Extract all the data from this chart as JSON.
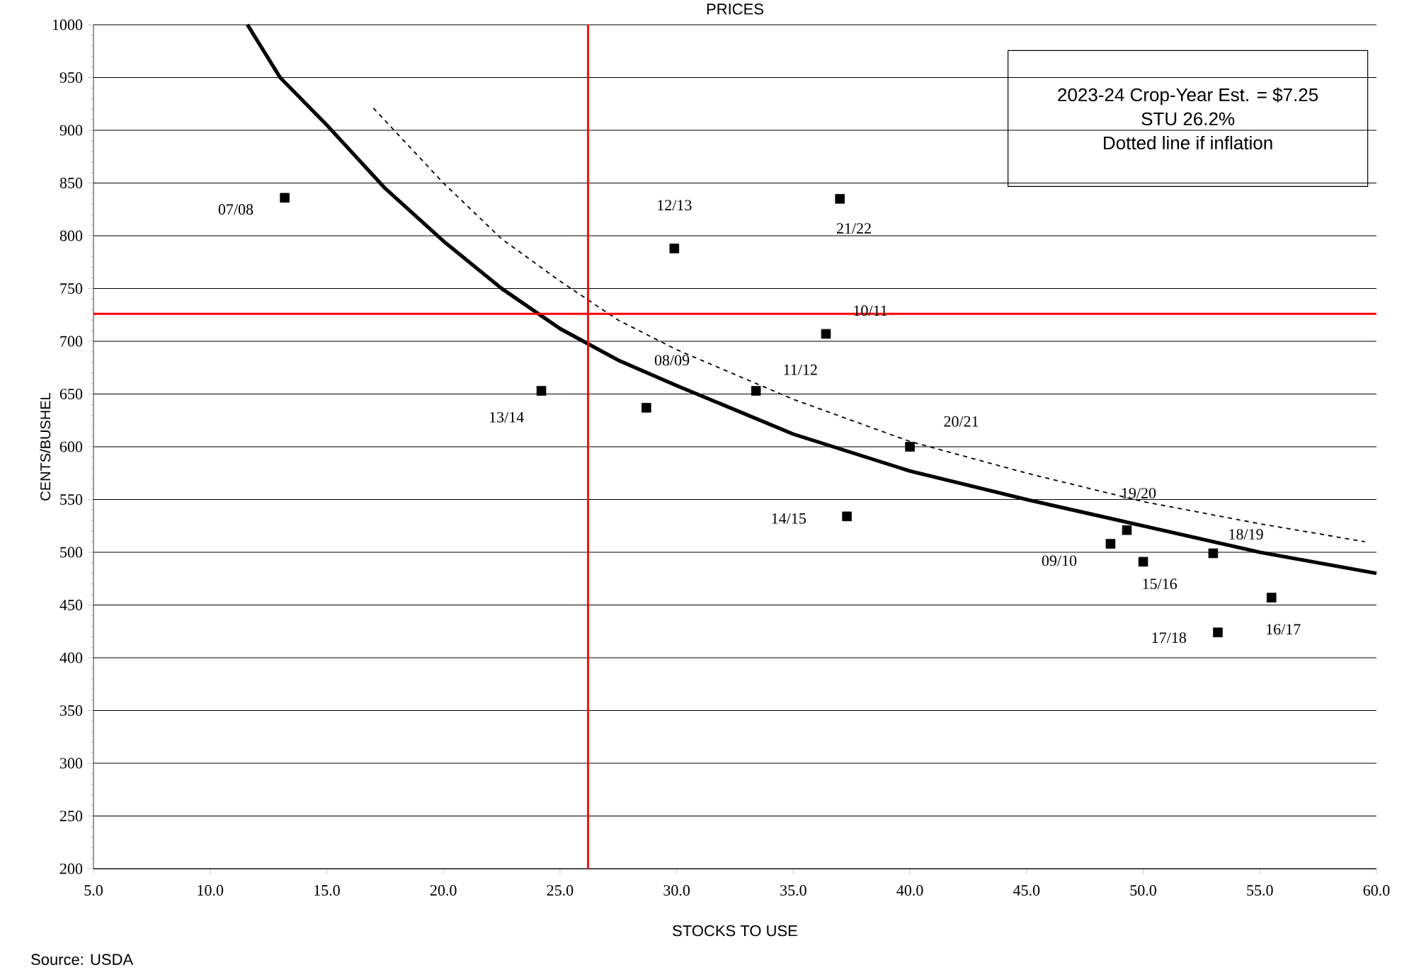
{
  "chart_data": {
    "type": "scatter",
    "title": "PRICES",
    "xlabel": "STOCKS TO USE",
    "ylabel": "CENTS/BUSHEL",
    "xlim": [
      5,
      60
    ],
    "ylim": [
      200,
      1000
    ],
    "xticks": [
      {
        "value": 5,
        "label": "5.0"
      },
      {
        "value": 10,
        "label": "10.0"
      },
      {
        "value": 15,
        "label": "15.0"
      },
      {
        "value": 20,
        "label": "20.0"
      },
      {
        "value": 25,
        "label": "25.0"
      },
      {
        "value": 30,
        "label": "30.0"
      },
      {
        "value": 35,
        "label": "35.0"
      },
      {
        "value": 40,
        "label": "40.0"
      },
      {
        "value": 45,
        "label": "45.0"
      },
      {
        "value": 50,
        "label": "50.0"
      },
      {
        "value": 55,
        "label": "55.0"
      },
      {
        "value": 60,
        "label": "60.0"
      }
    ],
    "yticks": [
      200,
      250,
      300,
      350,
      400,
      450,
      500,
      550,
      600,
      650,
      700,
      750,
      800,
      850,
      900,
      950,
      1000
    ],
    "grid": "y",
    "series": [
      {
        "marker": "square",
        "color": "#000000",
        "x": [
          13.2,
          29.9,
          37.0,
          36.4,
          24.2,
          28.7,
          33.4,
          40.0,
          37.3,
          48.6,
          49.3,
          50.0,
          53.0,
          55.5,
          53.2
        ],
        "values": [
          836,
          788,
          835,
          707,
          653,
          637,
          653,
          600,
          534,
          508,
          521,
          491,
          499,
          457,
          424
        ]
      },
      {
        "type": "line",
        "line_style": "solid",
        "color": "#000000",
        "x": [
          11.6,
          13,
          15,
          17.5,
          20,
          22.5,
          25,
          27.5,
          30,
          35,
          40,
          45,
          50,
          55,
          60
        ],
        "values": [
          1000,
          950,
          905,
          845,
          795,
          750,
          712,
          682,
          658,
          612,
          577,
          550,
          525,
          500,
          480
        ]
      },
      {
        "type": "line",
        "line_style": "dashed",
        "color": "#000000",
        "x": [
          17,
          20,
          22.5,
          25,
          27.5,
          30,
          35,
          40,
          45,
          50,
          55,
          59.5
        ],
        "values": [
          921,
          850,
          797,
          757,
          720,
          692,
          645,
          605,
          575,
          548,
          527,
          510
        ]
      }
    ],
    "ref_lines": [
      {
        "axis": "y",
        "value": 726,
        "color": "#ff0000"
      },
      {
        "axis": "x",
        "value": 26.2,
        "color": "#ff0000"
      }
    ],
    "annotations": [
      {
        "text": "07/08",
        "x": 13.2,
        "y": 836
      },
      {
        "text": "12/13",
        "x": 29.9,
        "y": 788
      },
      {
        "text": "21/22",
        "x": 37.0,
        "y": 835
      },
      {
        "text": "10/11",
        "x": 36.4,
        "y": 707
      },
      {
        "text": "08/09",
        "x": 28.7,
        "y": 637
      },
      {
        "text": "11/12",
        "x": 33.4,
        "y": 653
      },
      {
        "text": "13/14",
        "x": 24.2,
        "y": 653
      },
      {
        "text": "20/21",
        "x": 40.0,
        "y": 600
      },
      {
        "text": "14/15",
        "x": 37.3,
        "y": 534
      },
      {
        "text": "19/20",
        "x": 49.3,
        "y": 521
      },
      {
        "text": "18/19",
        "x": 53.0,
        "y": 499
      },
      {
        "text": "09/10",
        "x": 48.6,
        "y": 508
      },
      {
        "text": "15/16",
        "x": 50.0,
        "y": 491
      },
      {
        "text": "16/17",
        "x": 55.5,
        "y": 457
      },
      {
        "text": "17/18",
        "x": 53.2,
        "y": 424
      },
      "2023-24 Crop-Year Est. = $7.25",
      "STU 26.2%",
      "Dotted line if inflation",
      "Source: USDA"
    ]
  }
}
